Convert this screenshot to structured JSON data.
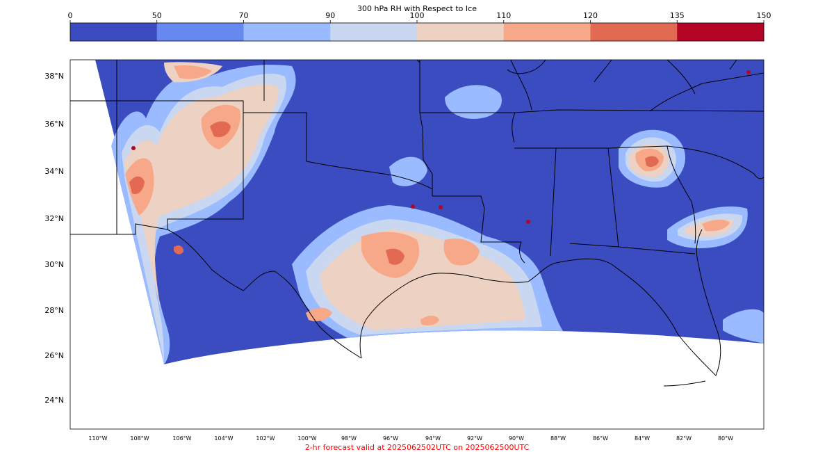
{
  "colorbar": {
    "title": "300 hPa RH with Respect to Ice",
    "ticks": [
      "0",
      "50",
      "70",
      "90",
      "100",
      "110",
      "120",
      "135",
      "150"
    ],
    "colors": [
      "#3b4cc0",
      "#6788ee",
      "#9abbff",
      "#c9d7f0",
      "#edd1c2",
      "#f7a889",
      "#e26952",
      "#b40426"
    ]
  },
  "map": {
    "projection": "Lambert conformal (HRRR domain subset)",
    "lat_labels": [
      "38°N",
      "36°N",
      "34°N",
      "32°N",
      "30°N",
      "28°N",
      "26°N",
      "24°N"
    ],
    "lon_labels": [
      "110°W",
      "108°W",
      "106°W",
      "104°W",
      "102°W",
      "100°W",
      "98°W",
      "96°W",
      "94°W",
      "92°W",
      "90°W",
      "88°W",
      "86°W",
      "84°W",
      "82°W",
      "80°W"
    ],
    "background_color": "#ffffff",
    "dry_color": "#3b4cc0"
  },
  "forecast_label": "2-hr forecast valid at 2025062502UTC on 2025062500UTC"
}
